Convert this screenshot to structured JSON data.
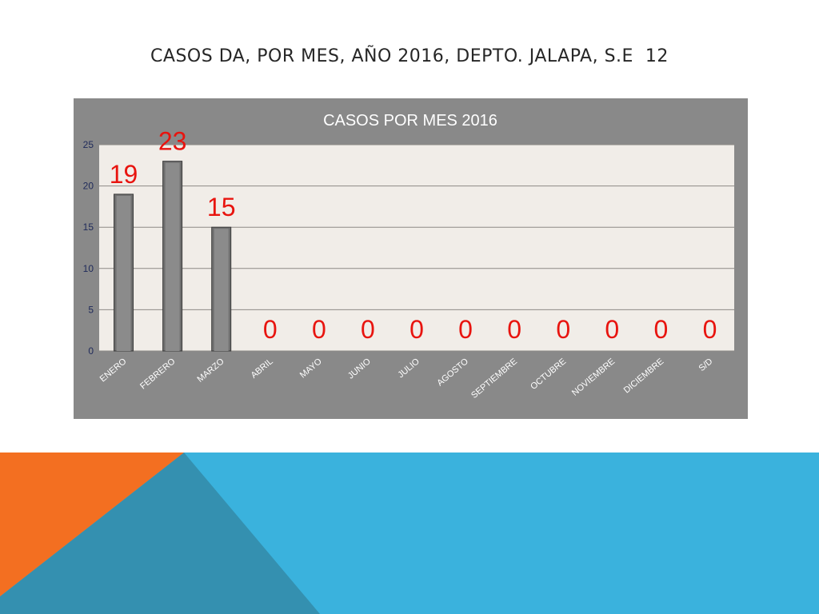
{
  "slide": {
    "title": "CASOS DA, POR MES, AÑO 2016, DEPTO. JALAPA, S.E  12"
  },
  "colors": {
    "frame": "#898989",
    "plot_area": "#f1ede8",
    "bar": "#6f6f6f",
    "data_label": "#e8140f",
    "axis_text": "#1f2a5a",
    "deco_orange": "#f36f21",
    "deco_teal": "#3490b0",
    "deco_blue": "#3ab2dd"
  },
  "chart_data": {
    "type": "bar",
    "title": "CASOS POR MES 2016",
    "xlabel": "",
    "ylabel": "",
    "categories": [
      "ENERO",
      "FEBRERO",
      "MARZO",
      "ABRIL",
      "MAYO",
      "JUNIO",
      "JULIO",
      "AGOSTO",
      "SEPTIEMBRE",
      "OCTUBRE",
      "NOVIEMBRE",
      "DICIEMBRE",
      "S/D"
    ],
    "values": [
      19,
      23,
      15,
      0,
      0,
      0,
      0,
      0,
      0,
      0,
      0,
      0,
      0
    ],
    "data_labels": [
      "19",
      "23",
      "15",
      "0",
      "0",
      "0",
      "0",
      "0",
      "0",
      "0",
      "0",
      "0",
      "0"
    ],
    "ylim": [
      0,
      25
    ],
    "yticks": [
      "0",
      "5",
      "10",
      "15",
      "20",
      "25"
    ],
    "grid": true,
    "legend": "none"
  }
}
